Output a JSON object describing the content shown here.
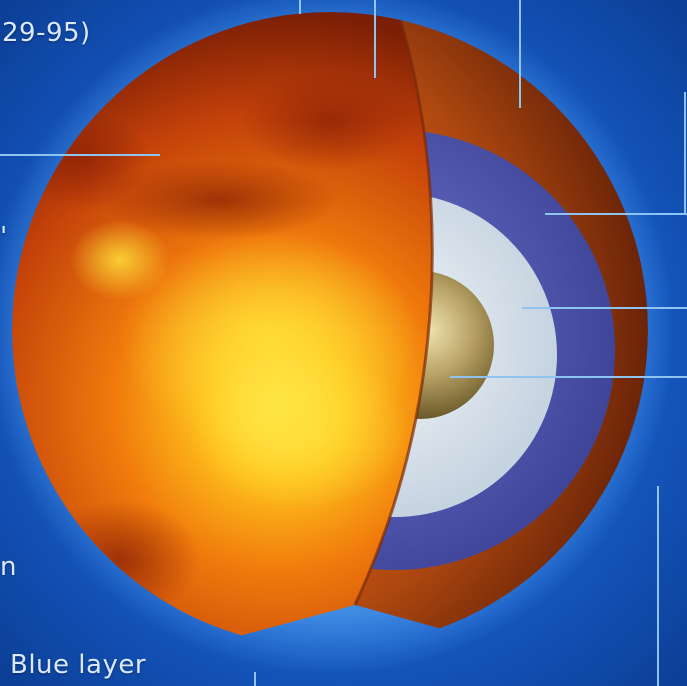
{
  "labels": {
    "top_fragment": "29-95)",
    "left_mark": "'",
    "left_fragment": "n",
    "bottom_label": "Blue layer"
  },
  "colors": {
    "background": "#0f4fb3",
    "crust": "#b24a10",
    "blue_layer": "#5960b8",
    "white_layer": "#dfe8f2",
    "core": "#a8935c",
    "leader_line": "#8fc4f0"
  }
}
